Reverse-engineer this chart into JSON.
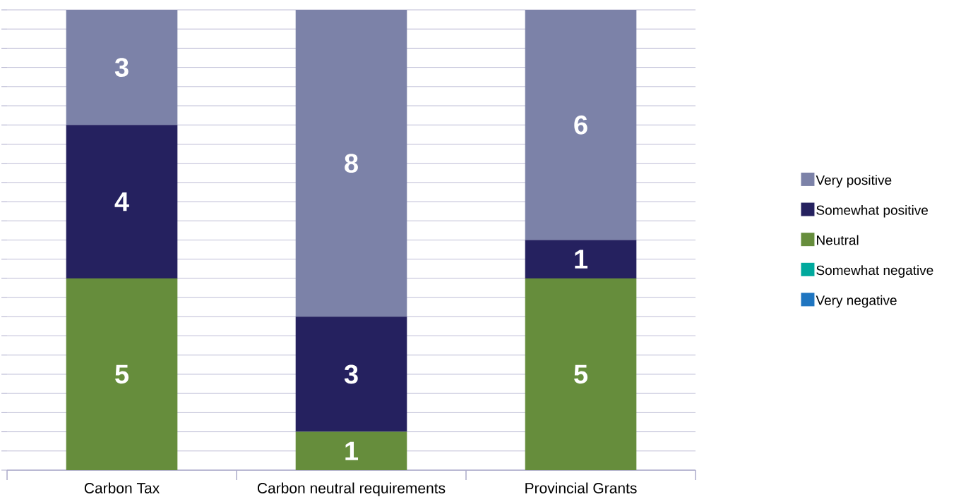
{
  "chart_data": {
    "type": "bar",
    "stacked": true,
    "categories": [
      "Carbon Tax",
      "Carbon neutral requirements",
      "Provincial Grants"
    ],
    "series": [
      {
        "name": "Very negative",
        "color": "#1f75c0",
        "values": [
          null,
          null,
          null
        ]
      },
      {
        "name": "Somewhat negative",
        "color": "#00a99d",
        "values": [
          null,
          null,
          null
        ]
      },
      {
        "name": "Neutral",
        "color": "#668d3c",
        "values": [
          5,
          1,
          5
        ],
        "value_labels": [
          "5",
          "1",
          "5"
        ]
      },
      {
        "name": "Somewhat positive",
        "color": "#25215f",
        "values": [
          4,
          3,
          1
        ],
        "value_labels": [
          "4",
          "3",
          "1"
        ]
      },
      {
        "name": "Very positive",
        "color": "#7c82a8",
        "values": [
          3,
          8,
          6
        ],
        "value_labels": [
          "3",
          "8",
          "6"
        ]
      }
    ],
    "tick_labels": "x",
    "grid": "y",
    "legend": "right"
  }
}
